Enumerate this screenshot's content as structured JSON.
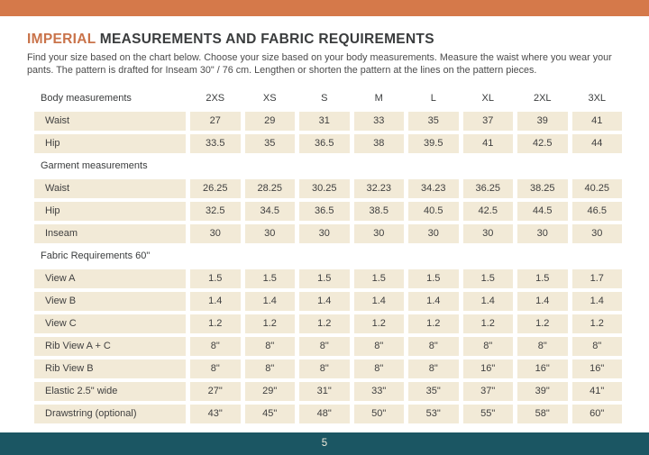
{
  "colors": {
    "accent_orange": "#d5794a",
    "title_orange": "#c9734a",
    "cell_cream": "#f2ead7",
    "footer_teal": "#1b5663",
    "text_dark": "#3a3c3d"
  },
  "title": {
    "highlight": "IMPERIAL",
    "rest": " MEASUREMENTS AND FABRIC REQUIREMENTS"
  },
  "intro": "Find your size based on the chart below. Choose your size based on your body measurements. Measure the waist where you wear your pants. The pattern is drafted for Inseam 30\" / 76 cm.  Lengthen or shorten the pattern at the lines on the pattern pieces.",
  "table": {
    "sizes": [
      "2XS",
      "XS",
      "S",
      "M",
      "L",
      "XL",
      "2XL",
      "3XL"
    ],
    "sections": [
      {
        "heading": "Body measurements",
        "show_sizes": true,
        "rows": [
          {
            "label": "Waist",
            "values": [
              "27",
              "29",
              "31",
              "33",
              "35",
              "37",
              "39",
              "41"
            ]
          },
          {
            "label": "Hip",
            "values": [
              "33.5",
              "35",
              "36.5",
              "38",
              "39.5",
              "41",
              "42.5",
              "44"
            ]
          }
        ]
      },
      {
        "heading": "Garment measurements",
        "show_sizes": false,
        "rows": [
          {
            "label": "Waist",
            "values": [
              "26.25",
              "28.25",
              "30.25",
              "32.23",
              "34.23",
              "36.25",
              "38.25",
              "40.25"
            ]
          },
          {
            "label": "Hip",
            "values": [
              "32.5",
              "34.5",
              "36.5",
              "38.5",
              "40.5",
              "42.5",
              "44.5",
              "46.5"
            ]
          },
          {
            "label": "Inseam",
            "values": [
              "30",
              "30",
              "30",
              "30",
              "30",
              "30",
              "30",
              "30"
            ]
          }
        ]
      },
      {
        "heading": "Fabric Requirements 60\"",
        "show_sizes": false,
        "rows": [
          {
            "label": "View A",
            "values": [
              "1.5",
              "1.5",
              "1.5",
              "1.5",
              "1.5",
              "1.5",
              "1.5",
              "1.7"
            ]
          },
          {
            "label": "View B",
            "values": [
              "1.4",
              "1.4",
              "1.4",
              "1.4",
              "1.4",
              "1.4",
              "1.4",
              "1.4"
            ]
          },
          {
            "label": "View C",
            "values": [
              "1.2",
              "1.2",
              "1.2",
              "1.2",
              "1.2",
              "1.2",
              "1.2",
              "1.2"
            ]
          },
          {
            "label": "Rib View A + C",
            "values": [
              "8\"",
              "8\"",
              "8\"",
              "8\"",
              "8\"",
              "8\"",
              "8\"",
              "8\""
            ]
          },
          {
            "label": "Rib View B",
            "values": [
              "8\"",
              "8\"",
              "8\"",
              "8\"",
              "8\"",
              "16\"",
              "16\"",
              "16\""
            ]
          },
          {
            "label": "Elastic 2.5\" wide",
            "values": [
              "27\"",
              "29\"",
              "31\"",
              "33\"",
              "35\"",
              "37\"",
              "39\"",
              "41\""
            ]
          },
          {
            "label": "Drawstring (optional)",
            "values": [
              "43\"",
              "45\"",
              "48\"",
              "50\"",
              "53\"",
              "55\"",
              "58\"",
              "60\""
            ]
          }
        ]
      }
    ]
  },
  "footer": {
    "page_number": "5"
  }
}
